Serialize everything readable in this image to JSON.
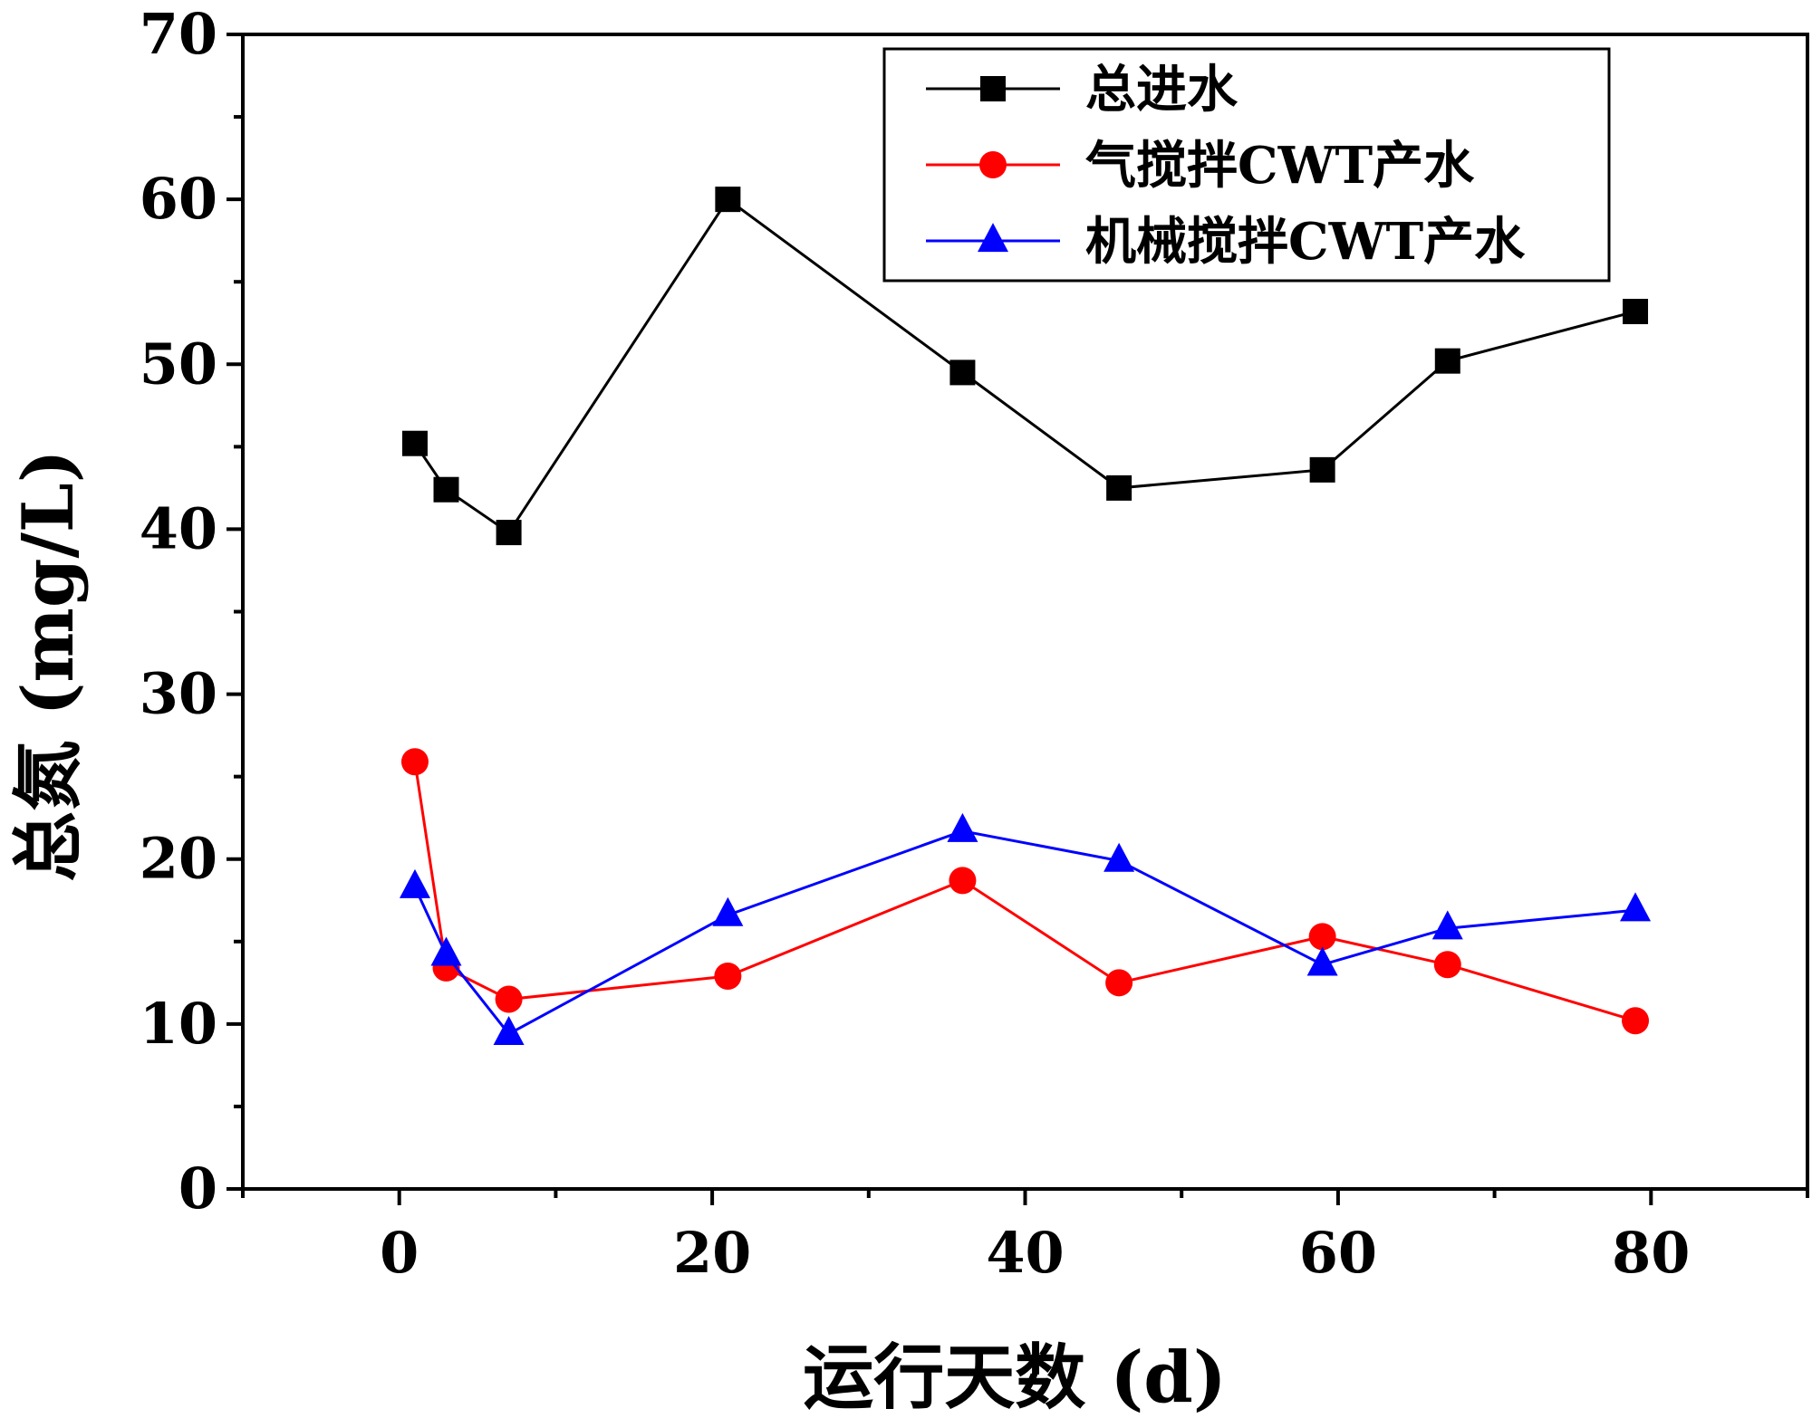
{
  "chart_data": {
    "type": "line",
    "xlabel": "运行天数 (d)",
    "ylabel": "总氮 (mg/L)",
    "xlim": [
      -10,
      90
    ],
    "ylim": [
      0,
      70
    ],
    "x_ticks": [
      0,
      20,
      40,
      60,
      80
    ],
    "x_tick_labels": [
      "0",
      "20",
      "40",
      "60",
      "80"
    ],
    "y_ticks": [
      0,
      10,
      20,
      30,
      40,
      50,
      60,
      70
    ],
    "y_tick_labels": [
      "0",
      "10",
      "20",
      "30",
      "40",
      "50",
      "60",
      "70"
    ],
    "legend_position": "top-right",
    "series": [
      {
        "name": "总进水",
        "color": "#000000",
        "marker": "square",
        "x": [
          1,
          3,
          7,
          21,
          36,
          46,
          59,
          67,
          79
        ],
        "values": [
          45.2,
          42.4,
          39.8,
          60.0,
          49.5,
          42.5,
          43.6,
          50.2,
          53.2
        ]
      },
      {
        "name": "气搅拌CWT产水",
        "color": "#ff0000",
        "marker": "circle",
        "x": [
          1,
          3,
          7,
          21,
          36,
          46,
          59,
          67,
          79
        ],
        "values": [
          25.9,
          13.4,
          11.5,
          12.9,
          18.7,
          12.5,
          15.3,
          13.6,
          10.2
        ]
      },
      {
        "name": "机械搅拌CWT产水",
        "color": "#0000ff",
        "marker": "triangle",
        "x": [
          1,
          3,
          7,
          21,
          36,
          46,
          59,
          67,
          79
        ],
        "values": [
          18.3,
          14.2,
          9.4,
          16.6,
          21.7,
          19.9,
          13.6,
          15.8,
          16.9
        ]
      }
    ]
  }
}
